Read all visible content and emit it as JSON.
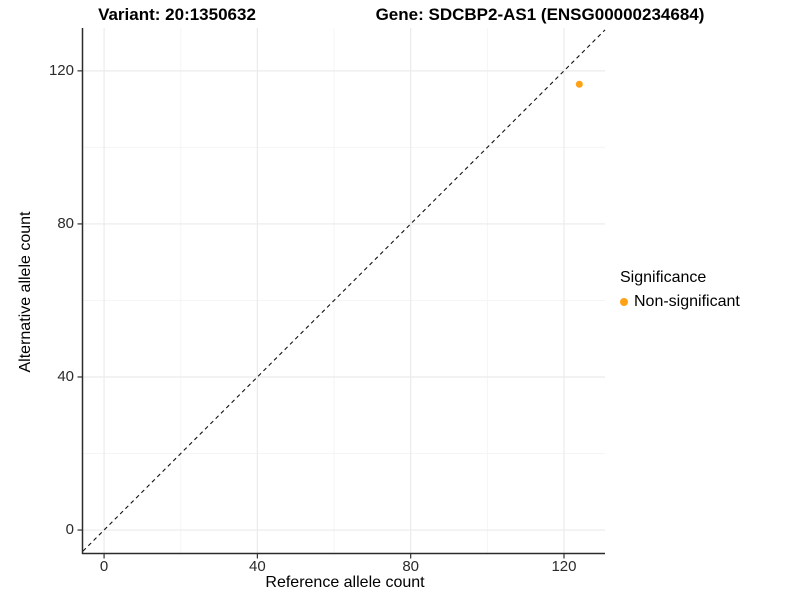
{
  "header": {
    "variant_title": "Variant: 20:1350632",
    "gene_title": "Gene: SDCBP2-AS1 (ENSG00000234684)"
  },
  "chart_data": {
    "type": "scatter",
    "xlabel": "Reference allele count",
    "ylabel": "Alternative allele count",
    "xlim": [
      -5.5,
      130.7
    ],
    "ylim": [
      -6,
      131.2
    ],
    "x_major_ticks": [
      0,
      40,
      80,
      120
    ],
    "y_major_ticks": [
      0,
      40,
      80,
      120
    ],
    "x_minor_gridlines": [
      20,
      60,
      100
    ],
    "y_minor_gridlines": [
      20,
      60,
      100
    ],
    "grid": "major+minor",
    "identity_line": {
      "slope": 1,
      "intercept": 0,
      "style": "dashed",
      "color": "#111111"
    },
    "series": [
      {
        "name": "Non-significant",
        "color": "#FFA216",
        "points": [
          {
            "x": 124,
            "y": 116.5
          }
        ]
      }
    ],
    "legend": {
      "title": "Significance",
      "position": "right",
      "items": [
        {
          "label": "Non-significant",
          "color": "#FFA216",
          "marker": "circle"
        }
      ]
    },
    "colors": {
      "grid_major": "#EBEBEB",
      "grid_minor": "#F5F5F5",
      "axis_line": "#2b2b2b",
      "tick_mark": "#333333",
      "background": "#FFFFFF"
    }
  }
}
